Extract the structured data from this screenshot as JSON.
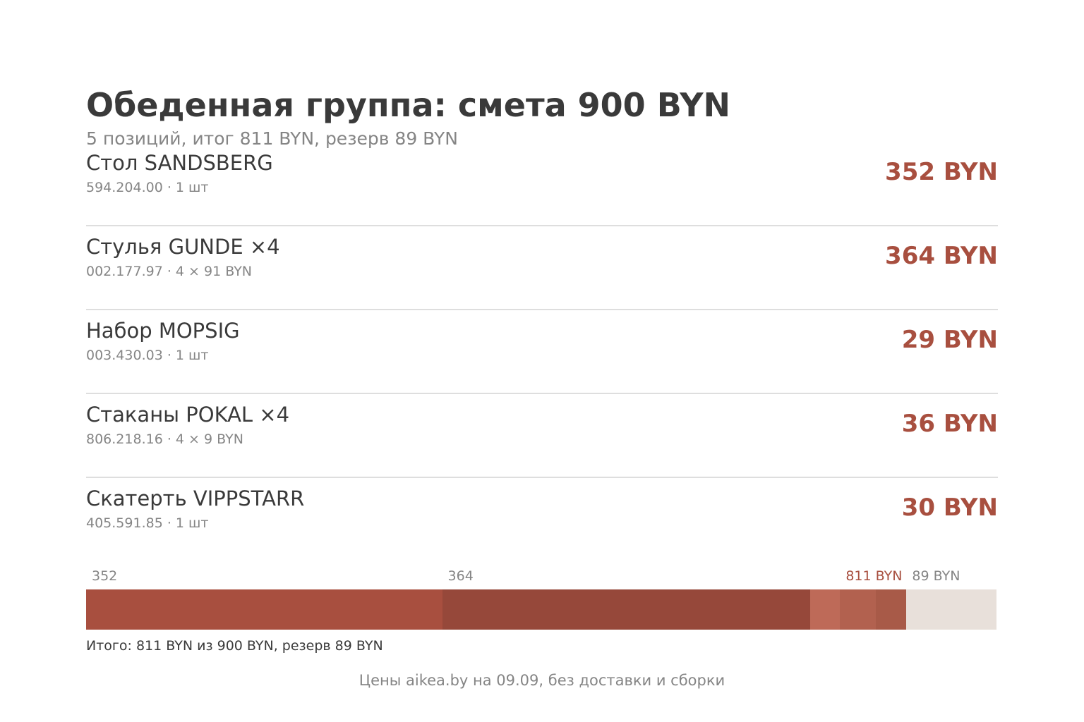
{
  "header": {
    "title": "Обеденная группа: смета 900 BYN",
    "subtitle": "5 позиций, итог 811 BYN, резерв 89 BYN"
  },
  "items": [
    {
      "name": "Стол SANDSBERG",
      "meta": "594.204.00 · 1 шт",
      "price": "352 BYN",
      "amount": 352,
      "color": "#a84f3f"
    },
    {
      "name": "Стулья GUNDE ×4",
      "meta": "002.177.97 · 4 × 91 BYN",
      "price": "364 BYN",
      "amount": 364,
      "color": "#96483a"
    },
    {
      "name": "Набор MOPSIG",
      "meta": "003.430.03 · 1 шт",
      "price": "29 BYN",
      "amount": 29,
      "color": "#be6a58"
    },
    {
      "name": "Стаканы POKAL ×4",
      "meta": "806.218.16 · 4 × 9 BYN",
      "price": "36 BYN",
      "amount": 36,
      "color": "#b2614f"
    },
    {
      "name": "Скатерть VIPPSTARR",
      "meta": "405.591.85 · 1 шт",
      "price": "30 BYN",
      "amount": 30,
      "color": "#a85a48"
    }
  ],
  "budget": {
    "total": 900,
    "spent": 811,
    "reserve": 89,
    "reserve_color": "#e8e0da",
    "labels": {
      "first": "352",
      "second": "364",
      "spent": "811 BYN",
      "reserve": "89 BYN"
    },
    "summary": "Итого: 811 BYN из 900 BYN, резерв 89 BYN"
  },
  "footnote": "Цены aikea.by на 09.09, без доставки и сборки"
}
